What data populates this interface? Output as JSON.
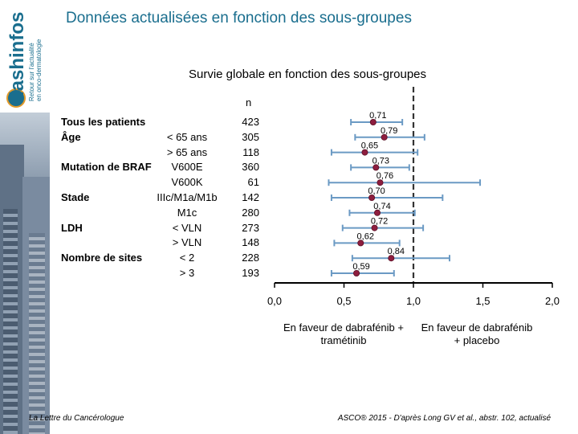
{
  "header": {
    "title": "Données actualisées en fonction des sous-groupes"
  },
  "logo": {
    "name": "flashinfos",
    "tagline_1": "Retour sur l'actualité",
    "tagline_2": "en onco-dermatologie"
  },
  "footer": {
    "left": "La Lettre du Cancérologue",
    "right": "ASCO® 2015 - D'après Long GV et al., abstr. 102, actualisé"
  },
  "chart_data": {
    "type": "forest",
    "title": "Survie globale en fonction des sous-groupes",
    "n_header": "n",
    "xlim": [
      0.0,
      2.0
    ],
    "reference_line": 1.0,
    "xticks": [
      0.0,
      0.5,
      1.0,
      1.5,
      2.0
    ],
    "xtick_labels": [
      "0,0",
      "0,5",
      "1,0",
      "1,5",
      "2,0"
    ],
    "favor_left": "En faveur de dabrafénib + tramétinib",
    "favor_right": "En faveur de dabrafénib + placebo",
    "rows": [
      {
        "group": "Tous les patients",
        "subgroup": "",
        "n": "423",
        "hr": 0.71,
        "hr_label": "0,71",
        "ci": [
          0.55,
          0.92
        ]
      },
      {
        "group": "Âge",
        "subgroup": "< 65 ans",
        "n": "305",
        "hr": 0.79,
        "hr_label": "0,79",
        "ci": [
          0.58,
          1.08
        ]
      },
      {
        "group": "",
        "subgroup": "> 65 ans",
        "n": "118",
        "hr": 0.65,
        "hr_label": "0,65",
        "ci": [
          0.41,
          1.03
        ]
      },
      {
        "group": "Mutation de BRAF",
        "subgroup": "V600E",
        "n": "360",
        "hr": 0.73,
        "hr_label": "0,73",
        "ci": [
          0.55,
          0.97
        ]
      },
      {
        "group": "",
        "subgroup": "V600K",
        "n": "61",
        "hr": 0.76,
        "hr_label": "0,76",
        "ci": [
          0.39,
          1.48
        ]
      },
      {
        "group": "Stade",
        "subgroup": "IIIc/M1a/M1b",
        "n": "142",
        "hr": 0.7,
        "hr_label": "0,70",
        "ci": [
          0.41,
          1.21
        ]
      },
      {
        "group": "",
        "subgroup": "M1c",
        "n": "280",
        "hr": 0.74,
        "hr_label": "0,74",
        "ci": [
          0.54,
          1.01
        ]
      },
      {
        "group": "LDH",
        "subgroup": "< VLN",
        "n": "273",
        "hr": 0.72,
        "hr_label": "0,72",
        "ci": [
          0.49,
          1.07
        ]
      },
      {
        "group": "",
        "subgroup": "> VLN",
        "n": "148",
        "hr": 0.62,
        "hr_label": "0,62",
        "ci": [
          0.43,
          0.9
        ]
      },
      {
        "group": "Nombre de sites",
        "subgroup": "< 2",
        "n": "228",
        "hr": 0.84,
        "hr_label": "0,84",
        "ci": [
          0.56,
          1.26
        ]
      },
      {
        "group": "",
        "subgroup": "> 3",
        "n": "193",
        "hr": 0.59,
        "hr_label": "0,59",
        "ci": [
          0.41,
          0.86
        ]
      }
    ],
    "colors": {
      "marker": "#8e1e3f",
      "ci_line": "#6b9ac4",
      "ref_line": "#333333",
      "axis": "#000000"
    }
  }
}
